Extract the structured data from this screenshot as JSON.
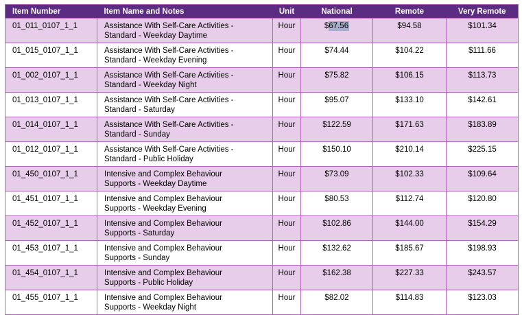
{
  "colors": {
    "header_bg": "#5C2B82",
    "header_text": "#FFFFFF",
    "grid_border": "#B263BC",
    "row_shaded_bg": "#E8CDEA",
    "row_plain_bg": "#FFFFFF",
    "body_text": "#000000",
    "text_selection_bg": "#A5AFCD"
  },
  "table": {
    "columns": [
      {
        "label": "Item Number",
        "align": "left"
      },
      {
        "label": "Item Name and Notes",
        "align": "left"
      },
      {
        "label": "Unit",
        "align": "center"
      },
      {
        "label": "National",
        "align": "center"
      },
      {
        "label": "Remote",
        "align": "center"
      },
      {
        "label": "Very Remote",
        "align": "center"
      }
    ],
    "rows": [
      {
        "item_number": "01_011_0107_1_1",
        "name_lines": [
          "Assistance With Self-Care Activities -",
          "Standard - Weekday Daytime"
        ],
        "unit": "Hour",
        "national": {
          "pre": "$",
          "selected": "67.56"
        },
        "remote": "$94.58",
        "very_remote": "$101.34",
        "shaded": true
      },
      {
        "item_number": "01_015_0107_1_1",
        "name_lines": [
          "Assistance With Self-Care Activities -",
          "Standard - Weekday Evening"
        ],
        "unit": "Hour",
        "national": "$74.44",
        "remote": "$104.22",
        "very_remote": "$111.66",
        "shaded": false
      },
      {
        "item_number": "01_002_0107_1_1",
        "name_lines": [
          "Assistance With Self-Care Activities -",
          "Standard - Weekday Night"
        ],
        "unit": "Hour",
        "national": "$75.82",
        "remote": "$106.15",
        "very_remote": "$113.73",
        "shaded": true
      },
      {
        "item_number": "01_013_0107_1_1",
        "name_lines": [
          "Assistance With Self-Care Activities -",
          "Standard - Saturday"
        ],
        "unit": "Hour",
        "national": "$95.07",
        "remote": "$133.10",
        "very_remote": "$142.61",
        "shaded": false
      },
      {
        "item_number": "01_014_0107_1_1",
        "name_lines": [
          "Assistance With Self-Care Activities -",
          "Standard - Sunday"
        ],
        "unit": "Hour",
        "national": "$122.59",
        "remote": "$171.63",
        "very_remote": "$183.89",
        "shaded": true
      },
      {
        "item_number": "01_012_0107_1_1",
        "name_lines": [
          "Assistance With Self-Care Activities -",
          "Standard - Public Holiday"
        ],
        "unit": "Hour",
        "national": "$150.10",
        "remote": "$210.14",
        "very_remote": "$225.15",
        "shaded": false
      },
      {
        "item_number": "01_450_0107_1_1",
        "name_lines": [
          "Intensive and Complex Behaviour",
          "Supports - Weekday Daytime"
        ],
        "unit": "Hour",
        "national": "$73.09",
        "remote": "$102.33",
        "very_remote": "$109.64",
        "shaded": true
      },
      {
        "item_number": "01_451_0107_1_1",
        "name_lines": [
          "Intensive and Complex Behaviour",
          "Supports - Weekday Evening"
        ],
        "unit": "Hour",
        "national": "$80.53",
        "remote": "$112.74",
        "very_remote": "$120.80",
        "shaded": false
      },
      {
        "item_number": "01_452_0107_1_1",
        "name_lines": [
          "Intensive and Complex Behaviour",
          "Supports - Saturday"
        ],
        "unit": "Hour",
        "national": "$102.86",
        "remote": "$144.00",
        "very_remote": "$154.29",
        "shaded": true
      },
      {
        "item_number": "01_453_0107_1_1",
        "name_lines": [
          "Intensive and Complex Behaviour",
          "Supports - Sunday"
        ],
        "unit": "Hour",
        "national": "$132.62",
        "remote": "$185.67",
        "very_remote": "$198.93",
        "shaded": false
      },
      {
        "item_number": "01_454_0107_1_1",
        "name_lines": [
          "Intensive and Complex Behaviour",
          "Supports - Public Holiday"
        ],
        "unit": "Hour",
        "national": "$162.38",
        "remote": "$227.33",
        "very_remote": "$243.57",
        "shaded": true
      },
      {
        "item_number": "01_455_0107_1_1",
        "name_lines": [
          "Intensive and Complex Behaviour",
          "Supports - Weekday Night"
        ],
        "unit": "Hour",
        "national": "$82.02",
        "remote": "$114.83",
        "very_remote": "$123.03",
        "shaded": false
      }
    ]
  }
}
